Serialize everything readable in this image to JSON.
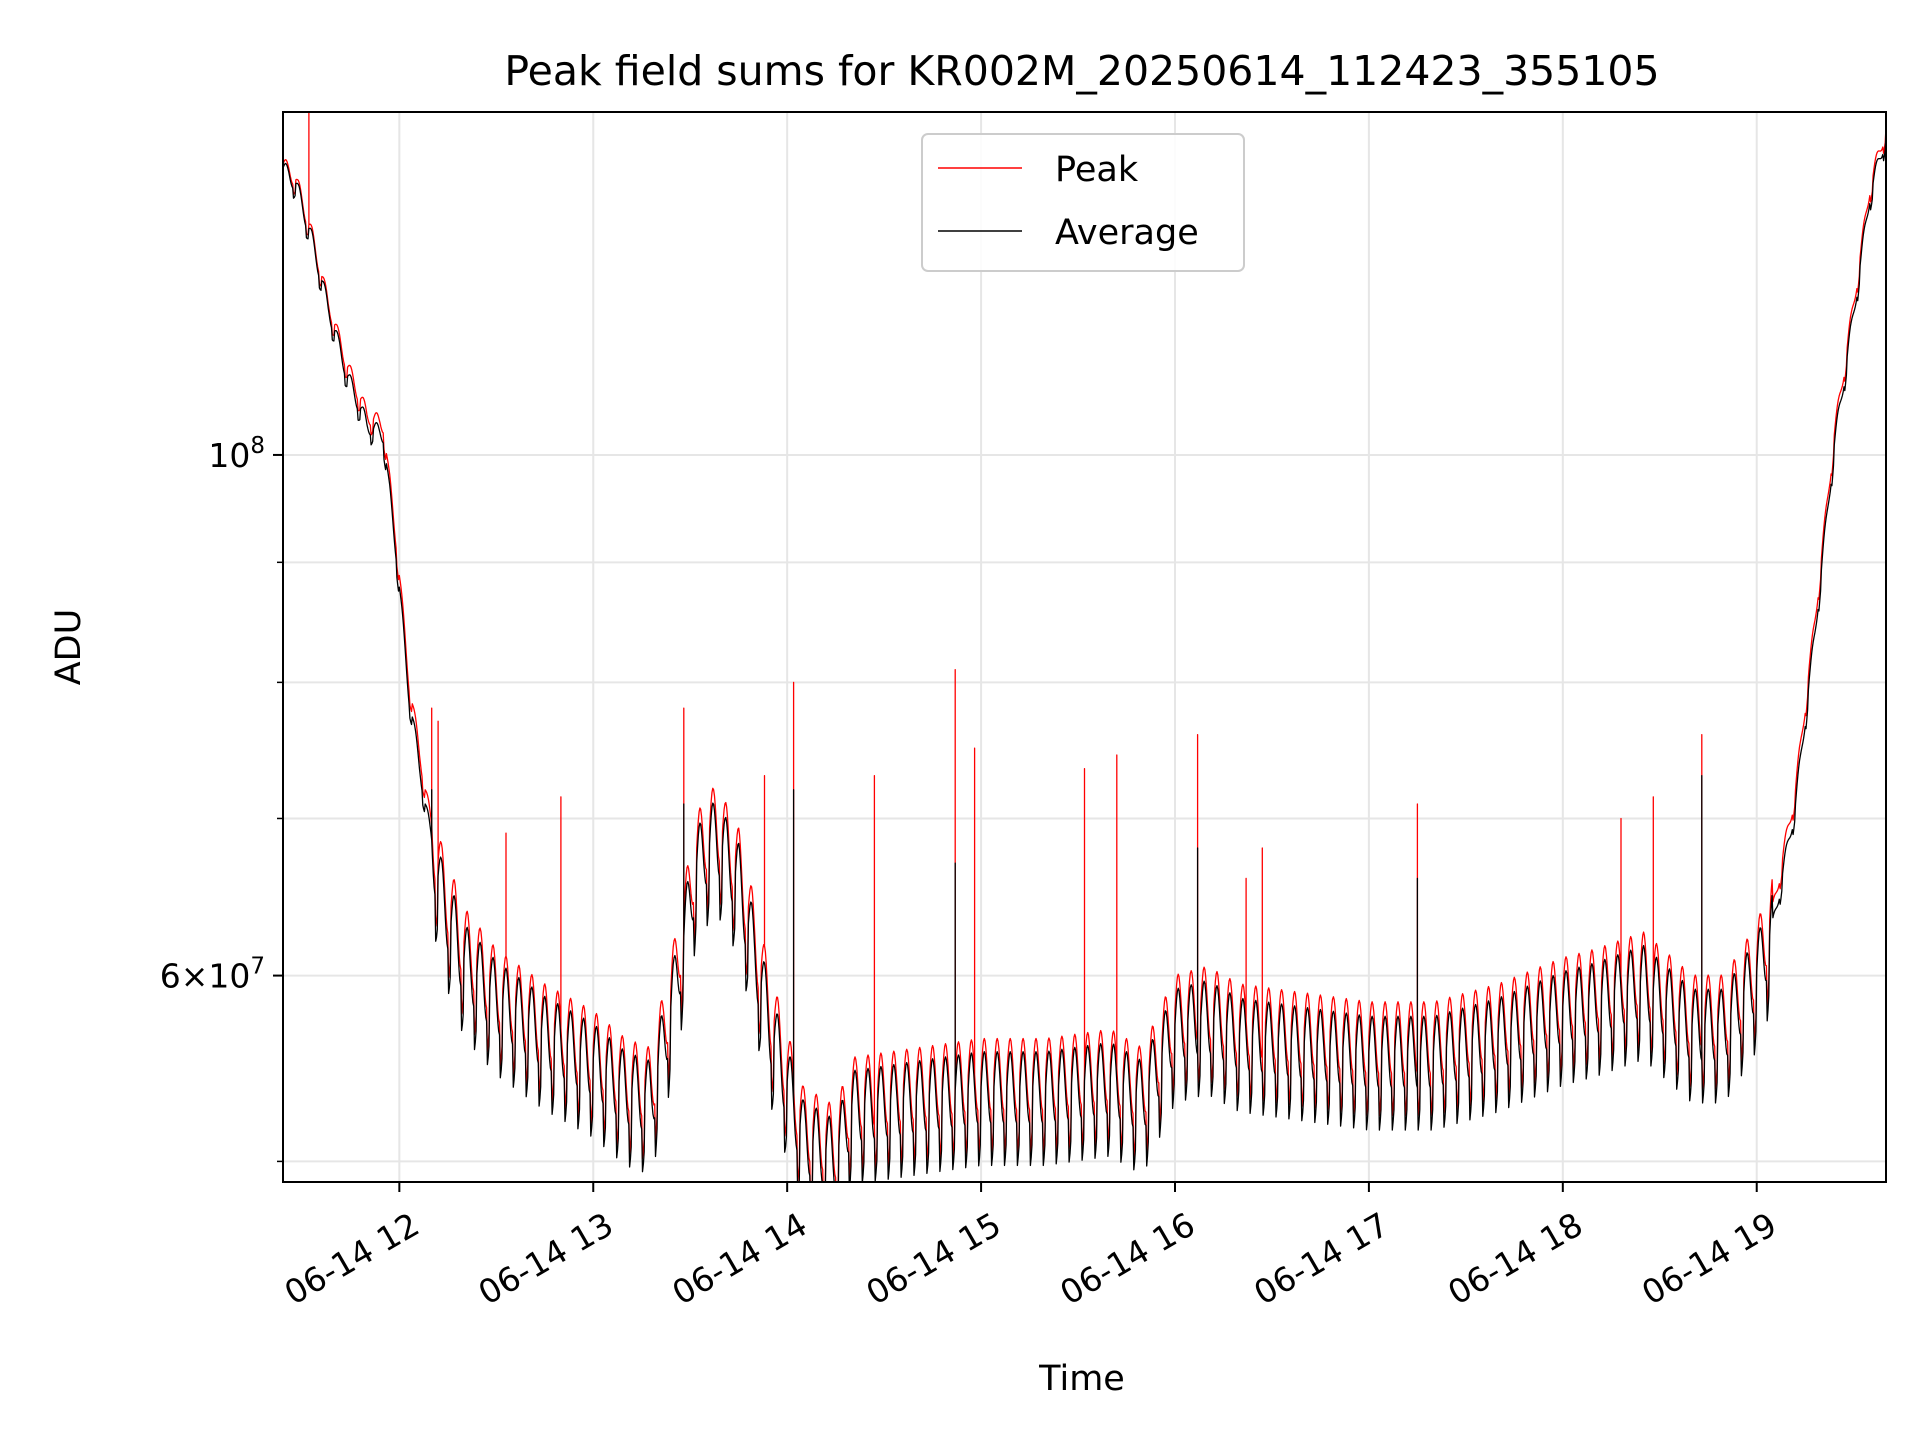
{
  "chart_data": {
    "type": "line",
    "title": "Peak field sums for KR002M_20250614_112423_355105",
    "xlabel": "Time",
    "ylabel": "ADU",
    "y_scale": "log",
    "ylim": [
      49000000,
      140000000
    ],
    "xlim": [
      "2025-06-14 11:24",
      "2025-06-14 19:40"
    ],
    "grid": true,
    "legend_position": "top-center",
    "x_ticks": [
      {
        "t": "2025-06-14 12:00",
        "label": "06-14 12"
      },
      {
        "t": "2025-06-14 13:00",
        "label": "06-14 13"
      },
      {
        "t": "2025-06-14 14:00",
        "label": "06-14 14"
      },
      {
        "t": "2025-06-14 15:00",
        "label": "06-14 15"
      },
      {
        "t": "2025-06-14 16:00",
        "label": "06-14 16"
      },
      {
        "t": "2025-06-14 17:00",
        "label": "06-14 17"
      },
      {
        "t": "2025-06-14 18:00",
        "label": "06-14 18"
      },
      {
        "t": "2025-06-14 19:00",
        "label": "06-14 19"
      }
    ],
    "y_major_ticks": [
      {
        "v": 100000000,
        "base": "10",
        "exp": "8"
      },
      {
        "v": 60000000,
        "mant": "6",
        "base": "10",
        "exp": "7"
      }
    ],
    "y_minor_gridlines": [
      50000000,
      70000000,
      80000000,
      90000000
    ],
    "series": [
      {
        "name": "Peak",
        "color": "#ff0000",
        "points": [
          [
            "2025-06-14 11:24",
            133000000
          ],
          [
            "2025-06-14 11:28",
            131000000
          ],
          [
            "2025-06-14 11:33",
            124000000
          ],
          [
            "2025-06-14 11:38",
            116000000
          ],
          [
            "2025-06-14 11:44",
            109000000
          ],
          [
            "2025-06-14 11:50",
            104000000
          ],
          [
            "2025-06-14 11:55",
            103000000
          ],
          [
            "2025-06-14 11:59",
            92000000
          ],
          [
            "2025-06-14 12:03",
            80000000
          ],
          [
            "2025-06-14 12:08",
            72000000
          ],
          [
            "2025-06-14 12:13",
            66000000
          ],
          [
            "2025-06-14 12:20",
            62000000
          ],
          [
            "2025-06-14 12:30",
            59500000
          ],
          [
            "2025-06-14 12:45",
            57500000
          ],
          [
            "2025-06-14 13:00",
            56000000
          ],
          [
            "2025-06-14 13:10",
            54500000
          ],
          [
            "2025-06-14 13:18",
            54000000
          ],
          [
            "2025-06-14 13:25",
            60000000
          ],
          [
            "2025-06-14 13:32",
            68000000
          ],
          [
            "2025-06-14 13:38",
            70000000
          ],
          [
            "2025-06-14 13:45",
            67000000
          ],
          [
            "2025-06-14 13:55",
            58000000
          ],
          [
            "2025-06-14 14:05",
            52000000
          ],
          [
            "2025-06-14 14:15",
            51000000
          ],
          [
            "2025-06-14 14:20",
            53500000
          ],
          [
            "2025-06-14 14:40",
            54000000
          ],
          [
            "2025-06-14 15:00",
            54500000
          ],
          [
            "2025-06-14 15:20",
            54500000
          ],
          [
            "2025-06-14 15:40",
            55000000
          ],
          [
            "2025-06-14 15:50",
            54000000
          ],
          [
            "2025-06-14 16:00",
            58000000
          ],
          [
            "2025-06-14 16:10",
            58500000
          ],
          [
            "2025-06-14 16:20",
            57500000
          ],
          [
            "2025-06-14 16:40",
            57000000
          ],
          [
            "2025-06-14 17:00",
            56500000
          ],
          [
            "2025-06-14 17:20",
            56500000
          ],
          [
            "2025-06-14 17:40",
            57500000
          ],
          [
            "2025-06-14 18:00",
            59000000
          ],
          [
            "2025-06-14 18:10",
            59500000
          ],
          [
            "2025-06-14 18:25",
            60500000
          ],
          [
            "2025-06-14 18:40",
            58000000
          ],
          [
            "2025-06-14 18:50",
            58000000
          ],
          [
            "2025-06-14 19:00",
            61000000
          ],
          [
            "2025-06-14 19:05",
            64000000
          ],
          [
            "2025-06-14 19:12",
            72000000
          ],
          [
            "2025-06-14 19:18",
            85000000
          ],
          [
            "2025-06-14 19:24",
            102000000
          ],
          [
            "2025-06-14 19:30",
            116000000
          ],
          [
            "2025-06-14 19:35",
            130000000
          ],
          [
            "2025-06-14 19:40",
            138000000
          ]
        ],
        "spikes": [
          [
            "2025-06-14 11:32",
            140000000
          ],
          [
            "2025-06-14 12:10",
            78000000
          ],
          [
            "2025-06-14 12:12",
            77000000
          ],
          [
            "2025-06-14 12:33",
            69000000
          ],
          [
            "2025-06-14 12:50",
            71500000
          ],
          [
            "2025-06-14 13:28",
            78000000
          ],
          [
            "2025-06-14 13:53",
            73000000
          ],
          [
            "2025-06-14 14:02",
            80000000
          ],
          [
            "2025-06-14 14:27",
            73000000
          ],
          [
            "2025-06-14 14:52",
            81000000
          ],
          [
            "2025-06-14 14:58",
            75000000
          ],
          [
            "2025-06-14 15:32",
            73500000
          ],
          [
            "2025-06-14 15:42",
            74500000
          ],
          [
            "2025-06-14 16:07",
            76000000
          ],
          [
            "2025-06-14 16:22",
            66000000
          ],
          [
            "2025-06-14 16:27",
            68000000
          ],
          [
            "2025-06-14 17:15",
            71000000
          ],
          [
            "2025-06-14 18:18",
            70000000
          ],
          [
            "2025-06-14 18:28",
            71500000
          ],
          [
            "2025-06-14 18:43",
            76000000
          ]
        ]
      },
      {
        "name": "Average",
        "color": "#000000",
        "points": [
          [
            "2025-06-14 11:24",
            132500000
          ],
          [
            "2025-06-14 11:28",
            130500000
          ],
          [
            "2025-06-14 11:33",
            123500000
          ],
          [
            "2025-06-14 11:38",
            115500000
          ],
          [
            "2025-06-14 11:44",
            108000000
          ],
          [
            "2025-06-14 11:50",
            103000000
          ],
          [
            "2025-06-14 11:55",
            102000000
          ],
          [
            "2025-06-14 11:59",
            91000000
          ],
          [
            "2025-06-14 12:03",
            79000000
          ],
          [
            "2025-06-14 12:08",
            71000000
          ],
          [
            "2025-06-14 12:13",
            65000000
          ],
          [
            "2025-06-14 12:20",
            61000000
          ],
          [
            "2025-06-14 12:30",
            58800000
          ],
          [
            "2025-06-14 12:45",
            56800000
          ],
          [
            "2025-06-14 13:00",
            55300000
          ],
          [
            "2025-06-14 13:10",
            53800000
          ],
          [
            "2025-06-14 13:18",
            53300000
          ],
          [
            "2025-06-14 13:25",
            59000000
          ],
          [
            "2025-06-14 13:32",
            67000000
          ],
          [
            "2025-06-14 13:38",
            69000000
          ],
          [
            "2025-06-14 13:45",
            66000000
          ],
          [
            "2025-06-14 13:55",
            57000000
          ],
          [
            "2025-06-14 14:05",
            51300000
          ],
          [
            "2025-06-14 14:15",
            50300000
          ],
          [
            "2025-06-14 14:20",
            52800000
          ],
          [
            "2025-06-14 14:40",
            53300000
          ],
          [
            "2025-06-14 15:00",
            53800000
          ],
          [
            "2025-06-14 15:20",
            53800000
          ],
          [
            "2025-06-14 15:40",
            54300000
          ],
          [
            "2025-06-14 15:50",
            53300000
          ],
          [
            "2025-06-14 16:00",
            57200000
          ],
          [
            "2025-06-14 16:10",
            57700000
          ],
          [
            "2025-06-14 16:20",
            56700000
          ],
          [
            "2025-06-14 16:40",
            56200000
          ],
          [
            "2025-06-14 17:00",
            55700000
          ],
          [
            "2025-06-14 17:20",
            55700000
          ],
          [
            "2025-06-14 17:40",
            56700000
          ],
          [
            "2025-06-14 18:00",
            58200000
          ],
          [
            "2025-06-14 18:10",
            58700000
          ],
          [
            "2025-06-14 18:25",
            59700000
          ],
          [
            "2025-06-14 18:40",
            57200000
          ],
          [
            "2025-06-14 18:50",
            57200000
          ],
          [
            "2025-06-14 19:00",
            60200000
          ],
          [
            "2025-06-14 19:05",
            63000000
          ],
          [
            "2025-06-14 19:12",
            71000000
          ],
          [
            "2025-06-14 19:18",
            84000000
          ],
          [
            "2025-06-14 19:24",
            101000000
          ],
          [
            "2025-06-14 19:30",
            115000000
          ],
          [
            "2025-06-14 19:35",
            129000000
          ],
          [
            "2025-06-14 19:40",
            137000000
          ]
        ],
        "spikes": [
          [
            "2025-06-14 12:10",
            72000000
          ],
          [
            "2025-06-14 13:28",
            71000000
          ],
          [
            "2025-06-14 14:02",
            72000000
          ],
          [
            "2025-06-14 14:52",
            67000000
          ],
          [
            "2025-06-14 16:07",
            68000000
          ],
          [
            "2025-06-14 17:15",
            66000000
          ],
          [
            "2025-06-14 18:43",
            73000000
          ]
        ]
      }
    ]
  }
}
